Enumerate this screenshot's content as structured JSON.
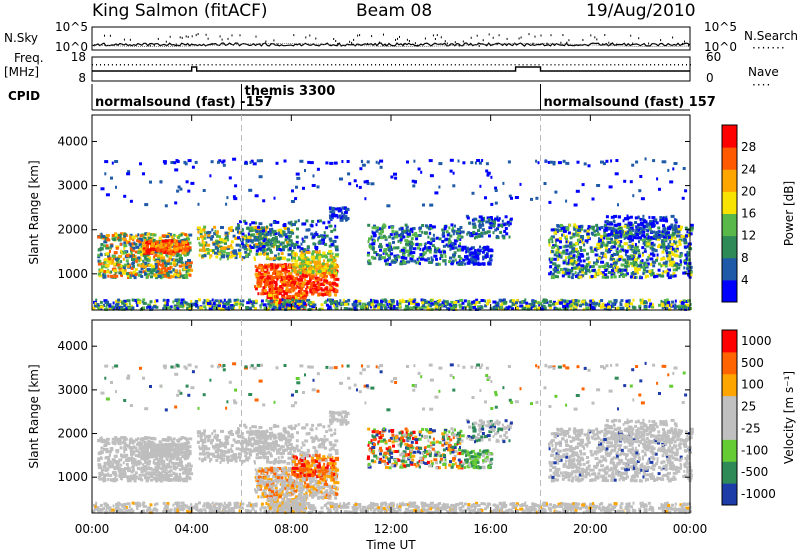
{
  "header": {
    "title": "King Salmon (fitACF)",
    "beam": "Beam 08",
    "date": "19/Aug/2010"
  },
  "side_labels": {
    "nsky": "N.Sky",
    "freq_line1": "Freq.",
    "freq_line2": "[MHz]",
    "cpid": "CPID",
    "nsearch": "N.Search",
    "nave": "Nave"
  },
  "colors": {
    "power": [
      "#0000ff",
      "#1e5aa8",
      "#2e8b57",
      "#59b84a",
      "#f7e200",
      "#ffa500",
      "#ff5a00",
      "#ff0000"
    ],
    "velocity": [
      "#ff0000",
      "#ff6400",
      "#ffa500",
      "#c0c0c0",
      "#c0c0c0",
      "#66cc33",
      "#2e8b57",
      "#1e3ca8"
    ],
    "ground_scatter": "#bebebe"
  },
  "chart_data": [
    {
      "type": "line",
      "name": "nsky_nsearch",
      "left_ticks": [
        "10^5",
        "10^0"
      ],
      "right_ticks": [
        "10^5",
        "10^0"
      ]
    },
    {
      "type": "line",
      "name": "freq_nave",
      "left_ticks": [
        "18",
        "8"
      ],
      "right_ticks": [
        "60",
        "0"
      ],
      "freq_steps": [
        {
          "t0": 0.0,
          "t1": 4.0,
          "level": "low"
        },
        {
          "t0": 4.0,
          "t1": 4.2,
          "level": "high"
        },
        {
          "t0": 4.2,
          "t1": 17.0,
          "level": "low"
        },
        {
          "t0": 17.0,
          "t1": 18.0,
          "level": "high"
        },
        {
          "t0": 18.0,
          "t1": 24.0,
          "level": "low"
        }
      ]
    },
    {
      "type": "table",
      "name": "cpid",
      "segments": [
        {
          "t": 0.0,
          "label": "normalsound (fast) -157"
        },
        {
          "t": 6.0,
          "label": "themis 3300"
        },
        {
          "t": 18.0,
          "label": "normalsound (fast) 157"
        }
      ]
    },
    {
      "type": "heatmap",
      "name": "power",
      "xlabel": "",
      "ylabel": "Slant Range [km]",
      "xlim": [
        0,
        24
      ],
      "ylim": [
        180,
        4600
      ],
      "y_ticks": [
        1000,
        2000,
        3000,
        4000
      ],
      "colorbar_label": "Power [dB]",
      "colorbar_ticks": [
        4,
        8,
        12,
        16,
        20,
        24,
        28
      ]
    },
    {
      "type": "heatmap",
      "name": "velocity",
      "xlabel": "Time UT",
      "ylabel": "Slant Range [km]",
      "xlim": [
        0,
        24
      ],
      "ylim": [
        180,
        4600
      ],
      "y_ticks": [
        1000,
        2000,
        3000,
        4000
      ],
      "x_tick_labels": [
        "00:00",
        "04:00",
        "08:00",
        "12:00",
        "16:00",
        "20:00",
        "00:00"
      ],
      "colorbar_label": "Velocity [m s⁻¹]",
      "colorbar_ticks": [
        "1000",
        "500",
        "100",
        "25",
        "-25",
        "-100",
        "-500",
        "-1000"
      ]
    }
  ]
}
